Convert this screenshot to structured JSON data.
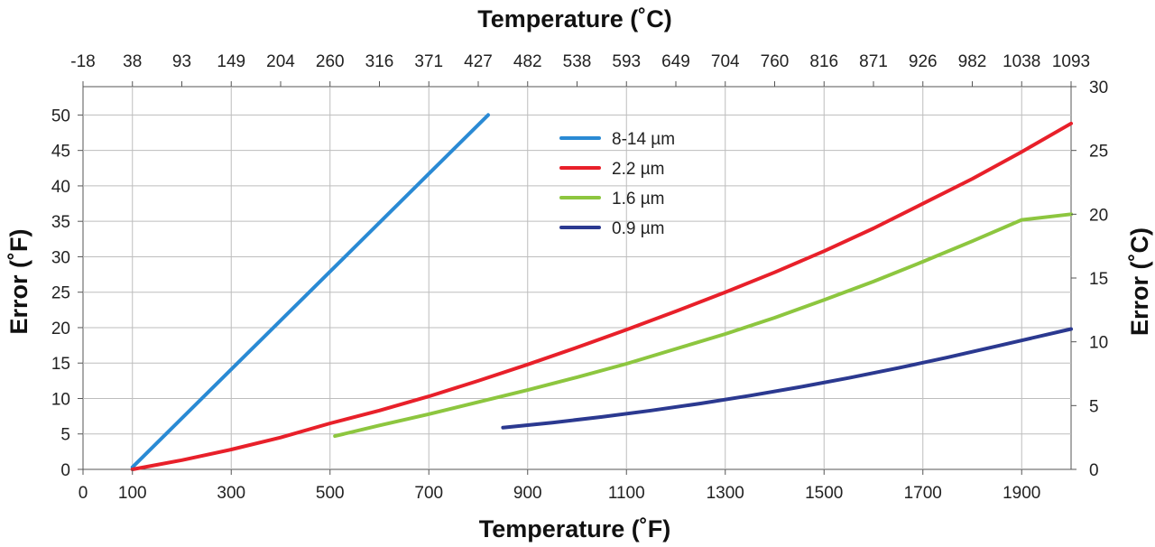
{
  "chart_data": {
    "type": "line",
    "title": "",
    "x_bottom": {
      "label": "Temperature (˚F)",
      "range": [
        0,
        2000
      ],
      "ticks": [
        0,
        100,
        300,
        500,
        700,
        900,
        1100,
        1300,
        1500,
        1700,
        1900
      ]
    },
    "x_top": {
      "label": "Temperature (˚C)",
      "ticks": [
        {
          "f": 0,
          "label": "-18"
        },
        {
          "f": 100,
          "label": "38"
        },
        {
          "f": 200,
          "label": "93"
        },
        {
          "f": 300,
          "label": "149"
        },
        {
          "f": 400,
          "label": "204"
        },
        {
          "f": 500,
          "label": "260"
        },
        {
          "f": 600,
          "label": "316"
        },
        {
          "f": 700,
          "label": "371"
        },
        {
          "f": 800,
          "label": "427"
        },
        {
          "f": 900,
          "label": "482"
        },
        {
          "f": 1000,
          "label": "538"
        },
        {
          "f": 1100,
          "label": "593"
        },
        {
          "f": 1200,
          "label": "649"
        },
        {
          "f": 1300,
          "label": "704"
        },
        {
          "f": 1400,
          "label": "760"
        },
        {
          "f": 1500,
          "label": "816"
        },
        {
          "f": 1600,
          "label": "871"
        },
        {
          "f": 1700,
          "label": "926"
        },
        {
          "f": 1800,
          "label": "982"
        },
        {
          "f": 1900,
          "label": "1038"
        },
        {
          "f": 2000,
          "label": "1093"
        }
      ]
    },
    "y_left": {
      "label": "Error (˚F)",
      "range": [
        0,
        54
      ],
      "ticks": [
        0,
        5,
        10,
        15,
        20,
        25,
        30,
        35,
        40,
        45,
        50
      ]
    },
    "y_right": {
      "label": "Error (˚C)",
      "range": [
        0,
        30
      ],
      "ticks": [
        0,
        5,
        10,
        15,
        20,
        25,
        30
      ]
    },
    "grid": true,
    "legend_position": "top-center",
    "series": [
      {
        "name": "8-14 µm",
        "color": "#2a8ad4",
        "points": [
          [
            100,
            0.3
          ],
          [
            820,
            50
          ]
        ]
      },
      {
        "name": "2.2 µm",
        "color": "#e8202a",
        "points": [
          [
            100,
            0
          ],
          [
            200,
            1.3
          ],
          [
            300,
            2.8
          ],
          [
            400,
            4.5
          ],
          [
            500,
            6.5
          ],
          [
            600,
            8.3
          ],
          [
            700,
            10.3
          ],
          [
            800,
            12.5
          ],
          [
            900,
            14.8
          ],
          [
            1000,
            17.2
          ],
          [
            1100,
            19.7
          ],
          [
            1200,
            22.3
          ],
          [
            1300,
            25
          ],
          [
            1400,
            27.8
          ],
          [
            1500,
            30.8
          ],
          [
            1600,
            34
          ],
          [
            1700,
            37.5
          ],
          [
            1800,
            41
          ],
          [
            1900,
            44.8
          ],
          [
            2000,
            48.8
          ]
        ]
      },
      {
        "name": "1.6 µm",
        "color": "#8dc63f",
        "points": [
          [
            510,
            4.7
          ],
          [
            600,
            6.2
          ],
          [
            700,
            7.8
          ],
          [
            800,
            9.5
          ],
          [
            900,
            11.2
          ],
          [
            1000,
            13
          ],
          [
            1100,
            14.9
          ],
          [
            1200,
            17
          ],
          [
            1300,
            19.1
          ],
          [
            1400,
            21.4
          ],
          [
            1500,
            23.9
          ],
          [
            1600,
            26.5
          ],
          [
            1700,
            29.3
          ],
          [
            1800,
            32.2
          ],
          [
            1900,
            35.2
          ],
          [
            2000,
            36
          ]
        ]
      },
      {
        "name": "0.9 µm",
        "color": "#2b3990",
        "points": [
          [
            850,
            5.9
          ],
          [
            950,
            6.6
          ],
          [
            1050,
            7.4
          ],
          [
            1150,
            8.3
          ],
          [
            1250,
            9.3
          ],
          [
            1350,
            10.4
          ],
          [
            1450,
            11.6
          ],
          [
            1550,
            12.9
          ],
          [
            1650,
            14.3
          ],
          [
            1750,
            15.8
          ],
          [
            1850,
            17.4
          ],
          [
            2000,
            19.8
          ]
        ]
      }
    ]
  }
}
